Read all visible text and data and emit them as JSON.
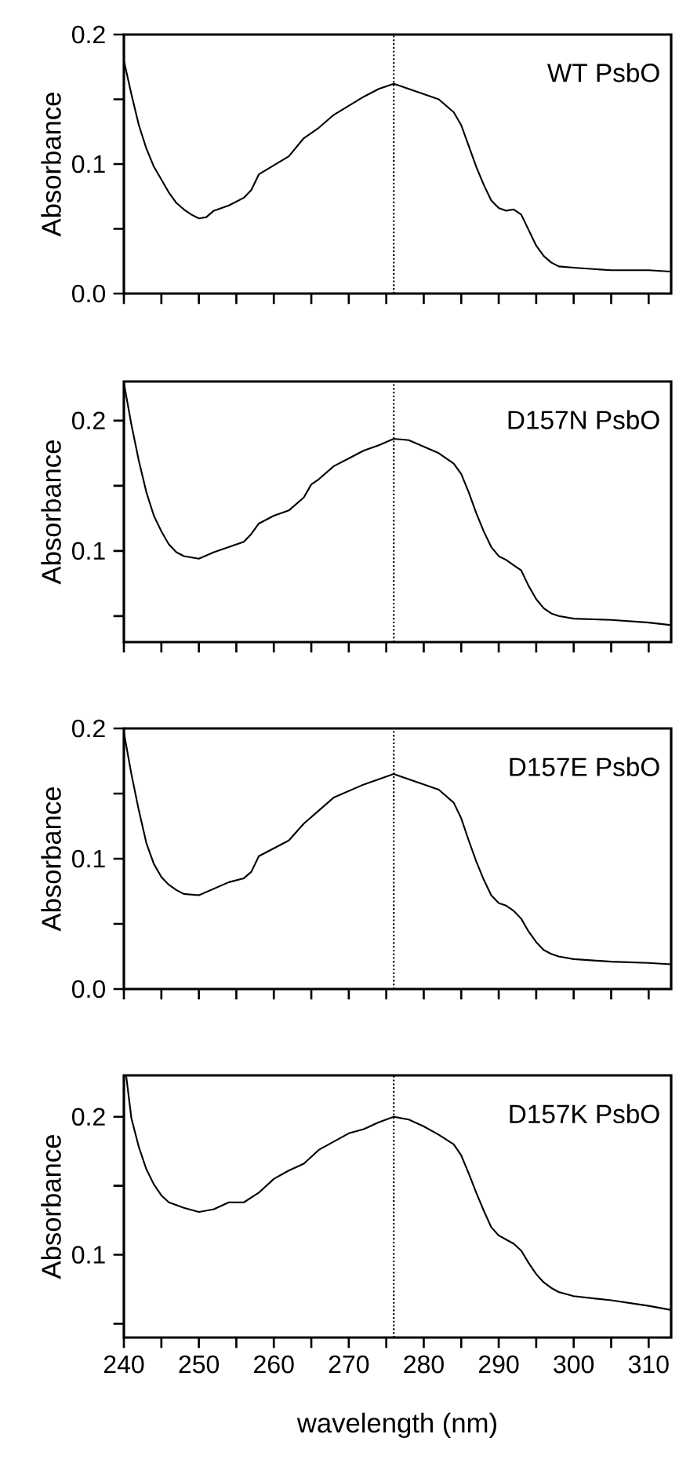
{
  "chart_data": [
    {
      "type": "line",
      "ylabel": "Absorbance",
      "annotations": [
        "WT PsbO"
      ],
      "tick_labels": "y",
      "xlim": [
        240,
        313
      ],
      "ylim": [
        0,
        0.2
      ],
      "xticks": [
        {
          "value": 240,
          "label": null
        },
        {
          "value": 245,
          "label": null
        },
        {
          "value": 250,
          "label": null
        },
        {
          "value": 255,
          "label": null
        },
        {
          "value": 260,
          "label": null
        },
        {
          "value": 265,
          "label": null
        },
        {
          "value": 270,
          "label": null
        },
        {
          "value": 275,
          "label": null
        },
        {
          "value": 280,
          "label": null
        },
        {
          "value": 285,
          "label": null
        },
        {
          "value": 290,
          "label": null
        },
        {
          "value": 295,
          "label": null
        },
        {
          "value": 300,
          "label": null
        },
        {
          "value": 305,
          "label": null
        },
        {
          "value": 310,
          "label": null
        }
      ],
      "yticks": [
        {
          "value": 0,
          "label": "0.0"
        },
        {
          "value": 0.05,
          "label": null
        },
        {
          "value": 0.1,
          "label": "0.1"
        },
        {
          "value": 0.15,
          "label": null
        },
        {
          "value": 0.2,
          "label": "0.2"
        }
      ],
      "ref_lines": [
        {
          "axis": "x",
          "value": 276,
          "line_style": "dotted"
        }
      ],
      "x": [
        240,
        241,
        242,
        243,
        244,
        245,
        246,
        247,
        248,
        249,
        250,
        251,
        252,
        254,
        256,
        257,
        258,
        260,
        262,
        264,
        266,
        268,
        270,
        272,
        274,
        276,
        278,
        280,
        282,
        284,
        285,
        286,
        287,
        288,
        289,
        290,
        291,
        292,
        293,
        294,
        295,
        296,
        297,
        298,
        300,
        305,
        310,
        313
      ],
      "series": [
        {
          "color": "#000000",
          "values": [
            0.18,
            0.154,
            0.13,
            0.112,
            0.098,
            0.088,
            0.078,
            0.07,
            0.065,
            0.061,
            0.058,
            0.059,
            0.064,
            0.068,
            0.074,
            0.08,
            0.092,
            0.099,
            0.106,
            0.12,
            0.128,
            0.138,
            0.145,
            0.152,
            0.158,
            0.162,
            0.158,
            0.154,
            0.15,
            0.14,
            0.13,
            0.114,
            0.098,
            0.084,
            0.072,
            0.066,
            0.064,
            0.065,
            0.061,
            0.049,
            0.037,
            0.029,
            0.024,
            0.021,
            0.02,
            0.018,
            0.018,
            0.017
          ]
        }
      ]
    },
    {
      "type": "line",
      "ylabel": "Absorbance",
      "annotations": [
        "D157N PsbO"
      ],
      "tick_labels": "y",
      "xlim": [
        240,
        313
      ],
      "ylim": [
        0.03,
        0.23
      ],
      "xticks": [
        {
          "value": 240,
          "label": null
        },
        {
          "value": 245,
          "label": null
        },
        {
          "value": 250,
          "label": null
        },
        {
          "value": 255,
          "label": null
        },
        {
          "value": 260,
          "label": null
        },
        {
          "value": 265,
          "label": null
        },
        {
          "value": 270,
          "label": null
        },
        {
          "value": 275,
          "label": null
        },
        {
          "value": 280,
          "label": null
        },
        {
          "value": 285,
          "label": null
        },
        {
          "value": 290,
          "label": null
        },
        {
          "value": 295,
          "label": null
        },
        {
          "value": 300,
          "label": null
        },
        {
          "value": 305,
          "label": null
        },
        {
          "value": 310,
          "label": null
        }
      ],
      "yticks": [
        {
          "value": 0.05,
          "label": null
        },
        {
          "value": 0.1,
          "label": "0.1"
        },
        {
          "value": 0.15,
          "label": null
        },
        {
          "value": 0.2,
          "label": "0.2"
        }
      ],
      "ref_lines": [
        {
          "axis": "x",
          "value": 276,
          "line_style": "dotted"
        }
      ],
      "x": [
        240,
        241,
        242,
        243,
        244,
        245,
        246,
        247,
        248,
        250,
        252,
        254,
        256,
        257,
        258,
        260,
        262,
        264,
        265,
        266,
        268,
        270,
        272,
        274,
        276,
        278,
        280,
        282,
        284,
        285,
        286,
        287,
        288,
        289,
        290,
        291,
        292,
        293,
        294,
        295,
        296,
        297,
        298,
        300,
        305,
        310,
        313
      ],
      "series": [
        {
          "color": "#000000",
          "values": [
            0.229,
            0.197,
            0.169,
            0.145,
            0.127,
            0.115,
            0.105,
            0.099,
            0.096,
            0.094,
            0.099,
            0.103,
            0.107,
            0.113,
            0.121,
            0.127,
            0.131,
            0.141,
            0.151,
            0.155,
            0.165,
            0.171,
            0.177,
            0.181,
            0.186,
            0.185,
            0.18,
            0.175,
            0.167,
            0.159,
            0.145,
            0.129,
            0.115,
            0.103,
            0.096,
            0.093,
            0.089,
            0.085,
            0.073,
            0.063,
            0.056,
            0.052,
            0.05,
            0.048,
            0.047,
            0.045,
            0.043
          ]
        }
      ]
    },
    {
      "type": "line",
      "ylabel": "Absorbance",
      "annotations": [
        "D157E PsbO"
      ],
      "tick_labels": "y",
      "xlim": [
        240,
        313
      ],
      "ylim": [
        0,
        0.2
      ],
      "xticks": [
        {
          "value": 240,
          "label": null
        },
        {
          "value": 245,
          "label": null
        },
        {
          "value": 250,
          "label": null
        },
        {
          "value": 255,
          "label": null
        },
        {
          "value": 260,
          "label": null
        },
        {
          "value": 265,
          "label": null
        },
        {
          "value": 270,
          "label": null
        },
        {
          "value": 275,
          "label": null
        },
        {
          "value": 280,
          "label": null
        },
        {
          "value": 285,
          "label": null
        },
        {
          "value": 290,
          "label": null
        },
        {
          "value": 295,
          "label": null
        },
        {
          "value": 300,
          "label": null
        },
        {
          "value": 305,
          "label": null
        },
        {
          "value": 310,
          "label": null
        }
      ],
      "yticks": [
        {
          "value": 0,
          "label": "0.0"
        },
        {
          "value": 0.05,
          "label": null
        },
        {
          "value": 0.1,
          "label": "0.1"
        },
        {
          "value": 0.15,
          "label": null
        },
        {
          "value": 0.2,
          "label": "0.2"
        }
      ],
      "ref_lines": [
        {
          "axis": "x",
          "value": 276,
          "line_style": "dotted"
        }
      ],
      "x": [
        240,
        241,
        242,
        243,
        244,
        245,
        246,
        247,
        248,
        250,
        252,
        254,
        256,
        257,
        258,
        260,
        262,
        264,
        266,
        268,
        270,
        272,
        274,
        276,
        278,
        280,
        282,
        284,
        285,
        286,
        287,
        288,
        289,
        290,
        291,
        292,
        293,
        294,
        295,
        296,
        297,
        298,
        300,
        305,
        310,
        313
      ],
      "series": [
        {
          "color": "#000000",
          "values": [
            0.197,
            0.165,
            0.137,
            0.112,
            0.096,
            0.086,
            0.08,
            0.076,
            0.073,
            0.072,
            0.077,
            0.082,
            0.085,
            0.09,
            0.102,
            0.108,
            0.114,
            0.127,
            0.137,
            0.147,
            0.152,
            0.157,
            0.161,
            0.165,
            0.161,
            0.157,
            0.153,
            0.143,
            0.131,
            0.114,
            0.098,
            0.084,
            0.072,
            0.066,
            0.064,
            0.06,
            0.054,
            0.044,
            0.036,
            0.03,
            0.027,
            0.025,
            0.023,
            0.021,
            0.02,
            0.019
          ]
        }
      ]
    },
    {
      "type": "line",
      "ylabel": "Absorbance",
      "xlabel": "wavelength (nm)",
      "annotations": [
        "D157K PsbO"
      ],
      "xlim": [
        240,
        313
      ],
      "ylim": [
        0.04,
        0.23
      ],
      "xticks": [
        {
          "value": 240,
          "label": "240"
        },
        {
          "value": 245,
          "label": null
        },
        {
          "value": 250,
          "label": "250"
        },
        {
          "value": 255,
          "label": null
        },
        {
          "value": 260,
          "label": "260"
        },
        {
          "value": 265,
          "label": null
        },
        {
          "value": 270,
          "label": "270"
        },
        {
          "value": 275,
          "label": null
        },
        {
          "value": 280,
          "label": "280"
        },
        {
          "value": 285,
          "label": null
        },
        {
          "value": 290,
          "label": "290"
        },
        {
          "value": 295,
          "label": null
        },
        {
          "value": 300,
          "label": "300"
        },
        {
          "value": 305,
          "label": null
        },
        {
          "value": 310,
          "label": "310"
        }
      ],
      "yticks": [
        {
          "value": 0.05,
          "label": null
        },
        {
          "value": 0.1,
          "label": "0.1"
        },
        {
          "value": 0.15,
          "label": null
        },
        {
          "value": 0.2,
          "label": "0.2"
        }
      ],
      "ref_lines": [
        {
          "axis": "x",
          "value": 276,
          "line_style": "dotted"
        }
      ],
      "x": [
        240.3,
        241,
        242,
        243,
        244,
        245,
        246,
        247,
        248,
        250,
        252,
        254,
        256,
        258,
        260,
        262,
        264,
        266,
        268,
        270,
        272,
        274,
        276,
        278,
        280,
        282,
        284,
        285,
        286,
        287,
        288,
        289,
        290,
        291,
        292,
        293,
        294,
        295,
        296,
        297,
        298,
        300,
        305,
        310,
        313
      ],
      "series": [
        {
          "color": "#000000",
          "values": [
            0.23,
            0.199,
            0.178,
            0.162,
            0.151,
            0.143,
            0.138,
            0.136,
            0.134,
            0.131,
            0.133,
            0.138,
            0.138,
            0.145,
            0.155,
            0.161,
            0.166,
            0.176,
            0.182,
            0.188,
            0.191,
            0.196,
            0.2,
            0.198,
            0.193,
            0.187,
            0.18,
            0.172,
            0.159,
            0.145,
            0.132,
            0.12,
            0.114,
            0.111,
            0.108,
            0.103,
            0.094,
            0.086,
            0.08,
            0.076,
            0.073,
            0.07,
            0.067,
            0.063,
            0.06
          ]
        }
      ]
    }
  ]
}
